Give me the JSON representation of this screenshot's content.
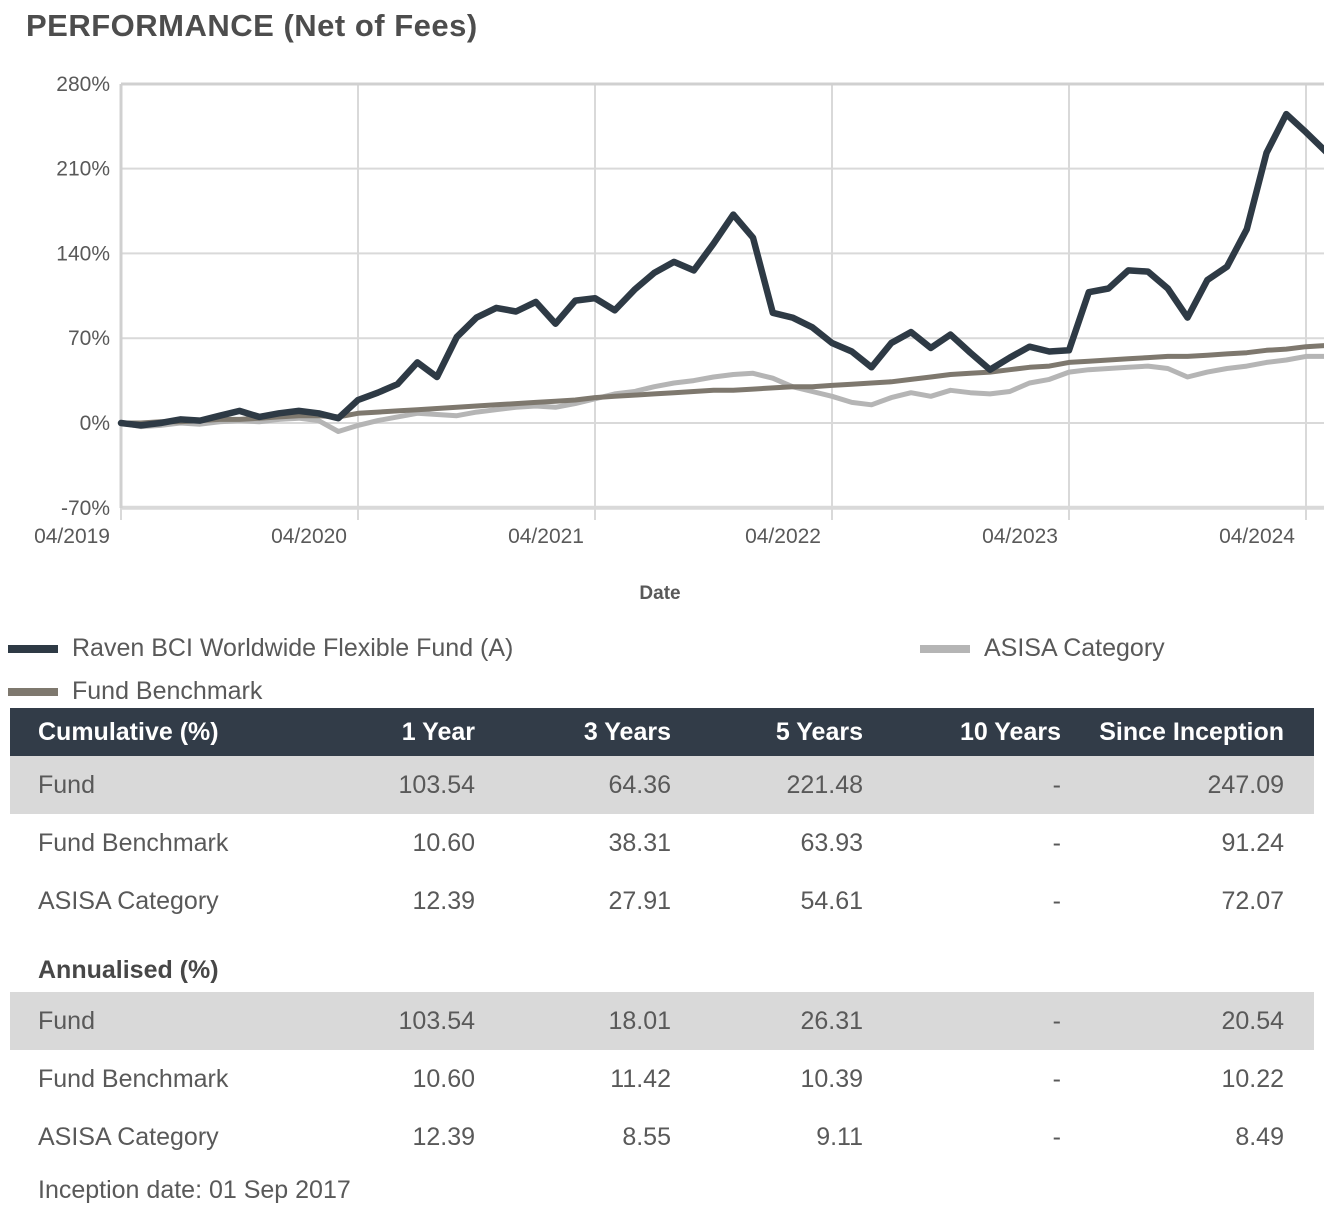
{
  "title": "PERFORMANCE (Net of Fees)",
  "colors": {
    "fund_line": "#2e3a45",
    "benchmark_line": "#7e786e",
    "asisa_line": "#b5b5b5",
    "header_bg": "#323c48",
    "shaded_row_bg": "#d9d9d9",
    "text_gray": "#595959",
    "grid_gray": "#d9d9d9"
  },
  "chart_data": {
    "type": "line",
    "title": "",
    "xlabel": "Date",
    "ylabel": "",
    "ylim": [
      -70,
      280
    ],
    "grid": true,
    "legend_position": "bottom",
    "y_tick_labels": [
      "280%",
      "210%",
      "140%",
      "70%",
      "0%",
      "-70%"
    ],
    "y_tick_values": [
      280,
      210,
      140,
      70,
      0,
      -70
    ],
    "x_tick_labels": [
      "04/2019",
      "04/2020",
      "04/2021",
      "04/2022",
      "04/2023",
      "04/2024"
    ],
    "x_unit": "monthly points from 04/2019 to 05/2024",
    "series": [
      {
        "name": "Raven BCI Worldwide Flexible Fund (A)",
        "color": "#2e3a45",
        "values": [
          0,
          -2,
          0,
          3,
          2,
          6,
          10,
          5,
          8,
          10,
          8,
          4,
          19,
          25,
          32,
          50,
          38,
          71,
          87,
          95,
          92,
          100,
          82,
          101,
          103,
          93,
          110,
          124,
          133,
          126,
          148,
          172,
          153,
          91,
          87,
          79,
          66,
          59,
          46,
          66,
          75,
          62,
          73,
          58,
          44,
          54,
          63,
          59,
          60,
          108,
          111,
          126,
          125,
          111,
          87,
          118,
          129,
          160,
          223,
          255,
          240,
          224
        ]
      },
      {
        "name": "Fund Benchmark",
        "color": "#7e786e",
        "values": [
          0,
          0,
          1,
          1,
          2,
          3,
          3,
          4,
          5,
          6,
          6,
          5,
          8,
          9,
          10,
          11,
          12,
          13,
          14,
          15,
          16,
          17,
          18,
          19,
          21,
          22,
          23,
          24,
          25,
          26,
          27,
          27,
          28,
          29,
          30,
          30,
          31,
          32,
          33,
          34,
          36,
          38,
          40,
          41,
          42,
          44,
          46,
          47,
          50,
          51,
          52,
          53,
          54,
          55,
          55,
          56,
          57,
          58,
          60,
          61,
          63,
          64
        ]
      },
      {
        "name": "ASISA Category",
        "color": "#b5b5b5",
        "values": [
          0,
          -3,
          -2,
          0,
          -1,
          1,
          2,
          1,
          3,
          4,
          2,
          -7,
          -2,
          2,
          5,
          8,
          7,
          6,
          9,
          11,
          13,
          14,
          13,
          16,
          20,
          24,
          26,
          30,
          33,
          35,
          38,
          40,
          41,
          37,
          30,
          26,
          22,
          17,
          15,
          21,
          25,
          22,
          27,
          25,
          24,
          26,
          33,
          36,
          42,
          44,
          45,
          46,
          47,
          45,
          38,
          42,
          45,
          47,
          50,
          52,
          55,
          55
        ]
      }
    ]
  },
  "legend": {
    "items": [
      {
        "label": "Raven BCI Worldwide Flexible Fund (A)",
        "color": "#2e3a45"
      },
      {
        "label": "ASISA Category",
        "color": "#b5b5b5"
      },
      {
        "label": "Fund Benchmark",
        "color": "#7e786e"
      }
    ]
  },
  "table": {
    "columns": [
      "1 Year",
      "3 Years",
      "5 Years",
      "10 Years",
      "Since Inception"
    ],
    "sections": [
      {
        "heading": "Cumulative (%)",
        "rows": [
          {
            "label": "Fund",
            "values": [
              "103.54",
              "64.36",
              "221.48",
              "-",
              "247.09"
            ],
            "shaded": true
          },
          {
            "label": "Fund Benchmark",
            "values": [
              "10.60",
              "38.31",
              "63.93",
              "-",
              "91.24"
            ],
            "shaded": false
          },
          {
            "label": "ASISA Category",
            "values": [
              "12.39",
              "27.91",
              "54.61",
              "-",
              "72.07"
            ],
            "shaded": false
          }
        ]
      },
      {
        "heading": "Annualised (%)",
        "rows": [
          {
            "label": "Fund",
            "values": [
              "103.54",
              "18.01",
              "26.31",
              "-",
              "20.54"
            ],
            "shaded": true
          },
          {
            "label": "Fund Benchmark",
            "values": [
              "10.60",
              "11.42",
              "10.39",
              "-",
              "10.22"
            ],
            "shaded": false
          },
          {
            "label": "ASISA Category",
            "values": [
              "12.39",
              "8.55",
              "9.11",
              "-",
              "8.49"
            ],
            "shaded": false
          }
        ]
      }
    ]
  },
  "footnote": "Inception date: 01 Sep 2017"
}
